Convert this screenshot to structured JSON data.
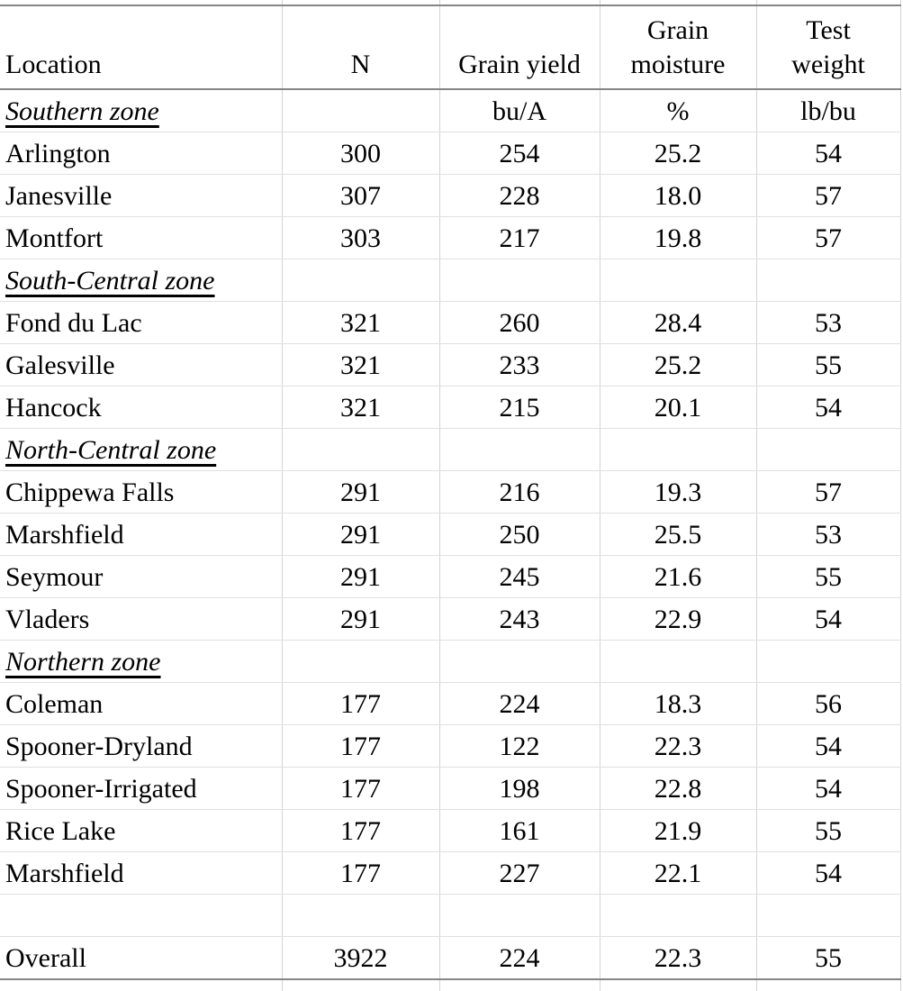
{
  "table": {
    "header": {
      "location": "Location",
      "n": "N",
      "grain_yield": "Grain yield",
      "grain_moisture_line1": "Grain",
      "grain_moisture_line2": "moisture",
      "test_weight_line1": "Test",
      "test_weight_line2": "weight"
    },
    "rows": [
      {
        "kind": "zone-units",
        "location": "Southern zone",
        "n": "",
        "yield": "bu/A",
        "moisture": "%",
        "weight": "lb/bu"
      },
      {
        "kind": "data",
        "location": "Arlington",
        "n": "300",
        "yield": "254",
        "moisture": "25.2",
        "weight": "54"
      },
      {
        "kind": "data",
        "location": "Janesville",
        "n": "307",
        "yield": "228",
        "moisture": "18.0",
        "weight": "57"
      },
      {
        "kind": "data",
        "location": "Montfort",
        "n": "303",
        "yield": "217",
        "moisture": "19.8",
        "weight": "57"
      },
      {
        "kind": "zone",
        "location": "South-Central zone",
        "n": "",
        "yield": "",
        "moisture": "",
        "weight": ""
      },
      {
        "kind": "data",
        "location": "Fond du Lac",
        "n": "321",
        "yield": "260",
        "moisture": "28.4",
        "weight": "53"
      },
      {
        "kind": "data",
        "location": "Galesville",
        "n": "321",
        "yield": "233",
        "moisture": "25.2",
        "weight": "55"
      },
      {
        "kind": "data",
        "location": "Hancock",
        "n": "321",
        "yield": "215",
        "moisture": "20.1",
        "weight": "54"
      },
      {
        "kind": "zone",
        "location": "North-Central zone",
        "n": "",
        "yield": "",
        "moisture": "",
        "weight": ""
      },
      {
        "kind": "data",
        "location": "Chippewa Falls",
        "n": "291",
        "yield": "216",
        "moisture": "19.3",
        "weight": "57"
      },
      {
        "kind": "data",
        "location": "Marshfield",
        "n": "291",
        "yield": "250",
        "moisture": "25.5",
        "weight": "53"
      },
      {
        "kind": "data",
        "location": "Seymour",
        "n": "291",
        "yield": "245",
        "moisture": "21.6",
        "weight": "55"
      },
      {
        "kind": "data",
        "location": "Vladers",
        "n": "291",
        "yield": "243",
        "moisture": "22.9",
        "weight": "54"
      },
      {
        "kind": "zone",
        "location": "Northern zone",
        "n": "",
        "yield": "",
        "moisture": "",
        "weight": ""
      },
      {
        "kind": "data",
        "location": "Coleman",
        "n": "177",
        "yield": "224",
        "moisture": "18.3",
        "weight": "56"
      },
      {
        "kind": "data",
        "location": "Spooner-Dryland",
        "n": "177",
        "yield": "122",
        "moisture": "22.3",
        "weight": "54"
      },
      {
        "kind": "data",
        "location": "Spooner-Irrigated",
        "n": "177",
        "yield": "198",
        "moisture": "22.8",
        "weight": "54"
      },
      {
        "kind": "data",
        "location": "Rice Lake",
        "n": "177",
        "yield": "161",
        "moisture": "21.9",
        "weight": "55"
      },
      {
        "kind": "data",
        "location": "Marshfield",
        "n": "177",
        "yield": "227",
        "moisture": "22.1",
        "weight": "54"
      },
      {
        "kind": "blank",
        "location": "",
        "n": "",
        "yield": "",
        "moisture": "",
        "weight": ""
      },
      {
        "kind": "overall",
        "location": "Overall",
        "n": "3922",
        "yield": "224",
        "moisture": "22.3",
        "weight": "55"
      }
    ],
    "colors": {
      "heavy_rule": "#868686",
      "row_rule": "#e0e0e0",
      "column_rule": "#d4d4d4",
      "text": "#000000",
      "background": "#ffffff"
    }
  },
  "chart_data": {
    "type": "table",
    "columns": [
      "Location",
      "N",
      "Grain yield (bu/A)",
      "Grain moisture (%)",
      "Test weight (lb/bu)"
    ],
    "units_row": [
      "",
      "",
      "bu/A",
      "%",
      "lb/bu"
    ],
    "sections": [
      {
        "zone": "Southern zone",
        "rows": [
          [
            "Arlington",
            300,
            254,
            25.2,
            54
          ],
          [
            "Janesville",
            307,
            228,
            18.0,
            57
          ],
          [
            "Montfort",
            303,
            217,
            19.8,
            57
          ]
        ]
      },
      {
        "zone": "South-Central zone",
        "rows": [
          [
            "Fond du Lac",
            321,
            260,
            28.4,
            53
          ],
          [
            "Galesville",
            321,
            233,
            25.2,
            55
          ],
          [
            "Hancock",
            321,
            215,
            20.1,
            54
          ]
        ]
      },
      {
        "zone": "North-Central zone",
        "rows": [
          [
            "Chippewa Falls",
            291,
            216,
            19.3,
            57
          ],
          [
            "Marshfield",
            291,
            250,
            25.5,
            53
          ],
          [
            "Seymour",
            291,
            245,
            21.6,
            55
          ],
          [
            "Vladers",
            291,
            243,
            22.9,
            54
          ]
        ]
      },
      {
        "zone": "Northern zone",
        "rows": [
          [
            "Coleman",
            177,
            224,
            18.3,
            56
          ],
          [
            "Spooner-Dryland",
            177,
            122,
            22.3,
            54
          ],
          [
            "Spooner-Irrigated",
            177,
            198,
            22.8,
            54
          ],
          [
            "Rice Lake",
            177,
            161,
            21.9,
            55
          ],
          [
            "Marshfield",
            177,
            227,
            22.1,
            54
          ]
        ]
      }
    ],
    "overall": [
      "Overall",
      3922,
      224,
      22.3,
      55
    ]
  }
}
